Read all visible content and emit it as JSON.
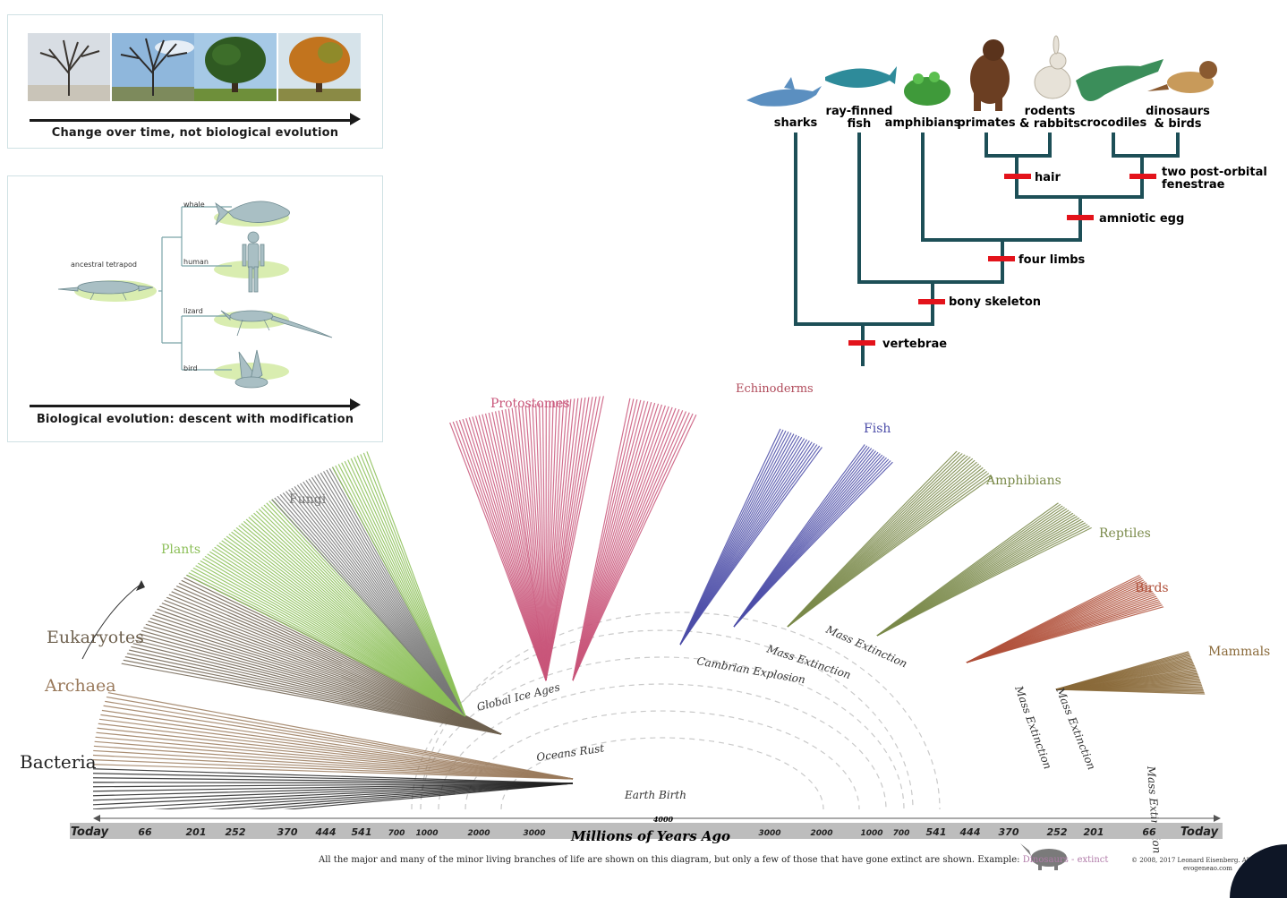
{
  "panel_trees": {
    "caption": "Change over time, not biological evolution"
  },
  "panel_descent": {
    "caption": "Biological evolution: descent with modification",
    "ancestor": "ancestral tetrapod",
    "labels": [
      "whale",
      "human",
      "lizard",
      "bird"
    ]
  },
  "cladogram": {
    "taxa": [
      {
        "line1": "",
        "line2": "sharks"
      },
      {
        "line1": "ray-finned",
        "line2": "fish"
      },
      {
        "line1": "",
        "line2": "amphibians"
      },
      {
        "line1": "",
        "line2": "primates"
      },
      {
        "line1": "rodents",
        "line2": "& rabbits"
      },
      {
        "line1": "",
        "line2": "crocodiles"
      },
      {
        "line1": "dinosaurs",
        "line2": "& birds"
      }
    ],
    "traits": [
      "hair",
      "two post-orbital",
      "fenestrae",
      "amniotic egg",
      "four limbs",
      "bony skeleton",
      "vertebrae"
    ]
  },
  "evogram": {
    "groups": [
      {
        "name": "Bacteria",
        "color": "#222222"
      },
      {
        "name": "Archaea",
        "color": "#9a7a5c"
      },
      {
        "name": "Eukaryotes",
        "color": "#6f6250"
      },
      {
        "name": "Plants",
        "color": "#8cbf58"
      },
      {
        "name": "Fungi",
        "color": "#777777"
      },
      {
        "name": "Protostomes",
        "color": "#c9567a"
      },
      {
        "name": "Echinoderms",
        "color": "#b04a5a"
      },
      {
        "name": "Fish",
        "color": "#4c4da8"
      },
      {
        "name": "Amphibians",
        "color": "#7a8a4a"
      },
      {
        "name": "Reptiles",
        "color": "#7a8a4a"
      },
      {
        "name": "Birds",
        "color": "#b0503a"
      },
      {
        "name": "Mammals",
        "color": "#8a6a3a"
      }
    ],
    "events": [
      "Global Ice Ages",
      "Cambrian Explosion",
      "Mass Extinction",
      "Mass Extinction",
      "Mass Extinction",
      "Mass Extinction",
      "Mass Extinction",
      "Oceans Rust",
      "Earth Birth"
    ],
    "axis_left": [
      "Today",
      "66",
      "201",
      "252",
      "370",
      "444",
      "541",
      "700",
      "1000",
      "2000",
      "3000"
    ],
    "axis_center_top": "4000",
    "axis_center": "Millions of Years Ago",
    "axis_right": [
      "3000",
      "2000",
      "1000",
      "700",
      "541",
      "444",
      "370",
      "252",
      "201",
      "66",
      "Today"
    ],
    "footnote": "All the major and many of the minor living branches of life are shown on this diagram, but only a few of those that have gone extinct are shown. Example: ",
    "footnote_highlight": "Dinosaurs - extinct",
    "credit1": "© 2008, 2017 Leonard Eisenberg. All rights reserved.",
    "credit2": "evogeneao.com"
  }
}
